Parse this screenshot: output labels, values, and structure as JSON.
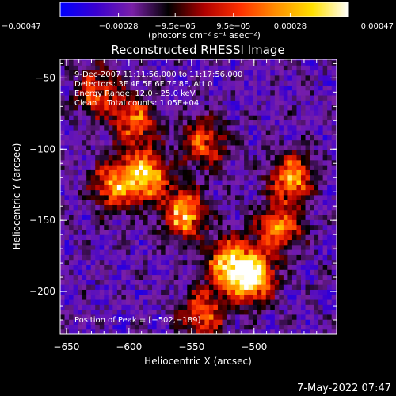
{
  "chart_data": {
    "type": "heatmap",
    "title": "Reconstructed RHESSI Image",
    "xlabel": "Heliocentric X (arcsec)",
    "ylabel": "Heliocentric Y (arcsec)",
    "xlim": [
      -655,
      -434
    ],
    "ylim": [
      -230,
      -37
    ],
    "x_ticks": [
      -650,
      -600,
      -550,
      -500
    ],
    "x_tick_labels": [
      "−650",
      "−600",
      "−550",
      "−500"
    ],
    "y_ticks": [
      -50,
      -100,
      -150,
      -200
    ],
    "y_tick_labels": [
      "−50",
      "−100",
      "−150",
      "−200"
    ],
    "colorbar": {
      "min": -0.00047,
      "max": 0.00047,
      "tick_values": [
        -0.00047,
        -0.00028,
        -9.5e-05,
        9.5e-05,
        0.00028,
        0.00047
      ],
      "tick_labels": [
        "−0.00047",
        "−0.00028",
        "−9.5e−05",
        "9.5e−05",
        "0.00028",
        "0.00047"
      ],
      "units_label": "(photons cm⁻² s⁻¹ asec⁻²)",
      "colormap": [
        "#0000ff",
        "#3a00d0",
        "#7a1fa8",
        "#000000",
        "#b00000",
        "#ff3000",
        "#ff9000",
        "#ffe000",
        "#ffffff"
      ]
    },
    "annotations": [
      "9-Dec-2007 11:11:56.000 to 11:17:56.000",
      "Detectors: 3F 4F 5F 6F 7F 8F, Att 0",
      "Energy Range: 12.0 - 25.0 keV",
      "Clean    Total counts: 1.05E+04"
    ],
    "peak_label": "Position of Peak = [−502,−189]",
    "peak": [
      -502,
      -189
    ],
    "emission_regions": [
      {
        "x": -587,
        "y": -118,
        "intensity": 0.00035
      },
      {
        "x": -556,
        "y": -145,
        "intensity": 0.0003
      },
      {
        "x": -612,
        "y": -125,
        "intensity": 0.00022
      },
      {
        "x": -595,
        "y": -80,
        "intensity": 0.00016
      },
      {
        "x": -540,
        "y": -95,
        "intensity": 0.00014
      },
      {
        "x": -502,
        "y": -189,
        "intensity": 0.00047
      },
      {
        "x": -520,
        "y": -180,
        "intensity": 0.0003
      },
      {
        "x": -470,
        "y": -120,
        "intensity": 0.00024
      },
      {
        "x": -480,
        "y": -155,
        "intensity": 0.0002
      },
      {
        "x": -625,
        "y": -60,
        "intensity": 0.00013
      },
      {
        "x": -540,
        "y": -215,
        "intensity": 0.00014
      }
    ]
  },
  "timestamp": "7-May-2022 07:47"
}
